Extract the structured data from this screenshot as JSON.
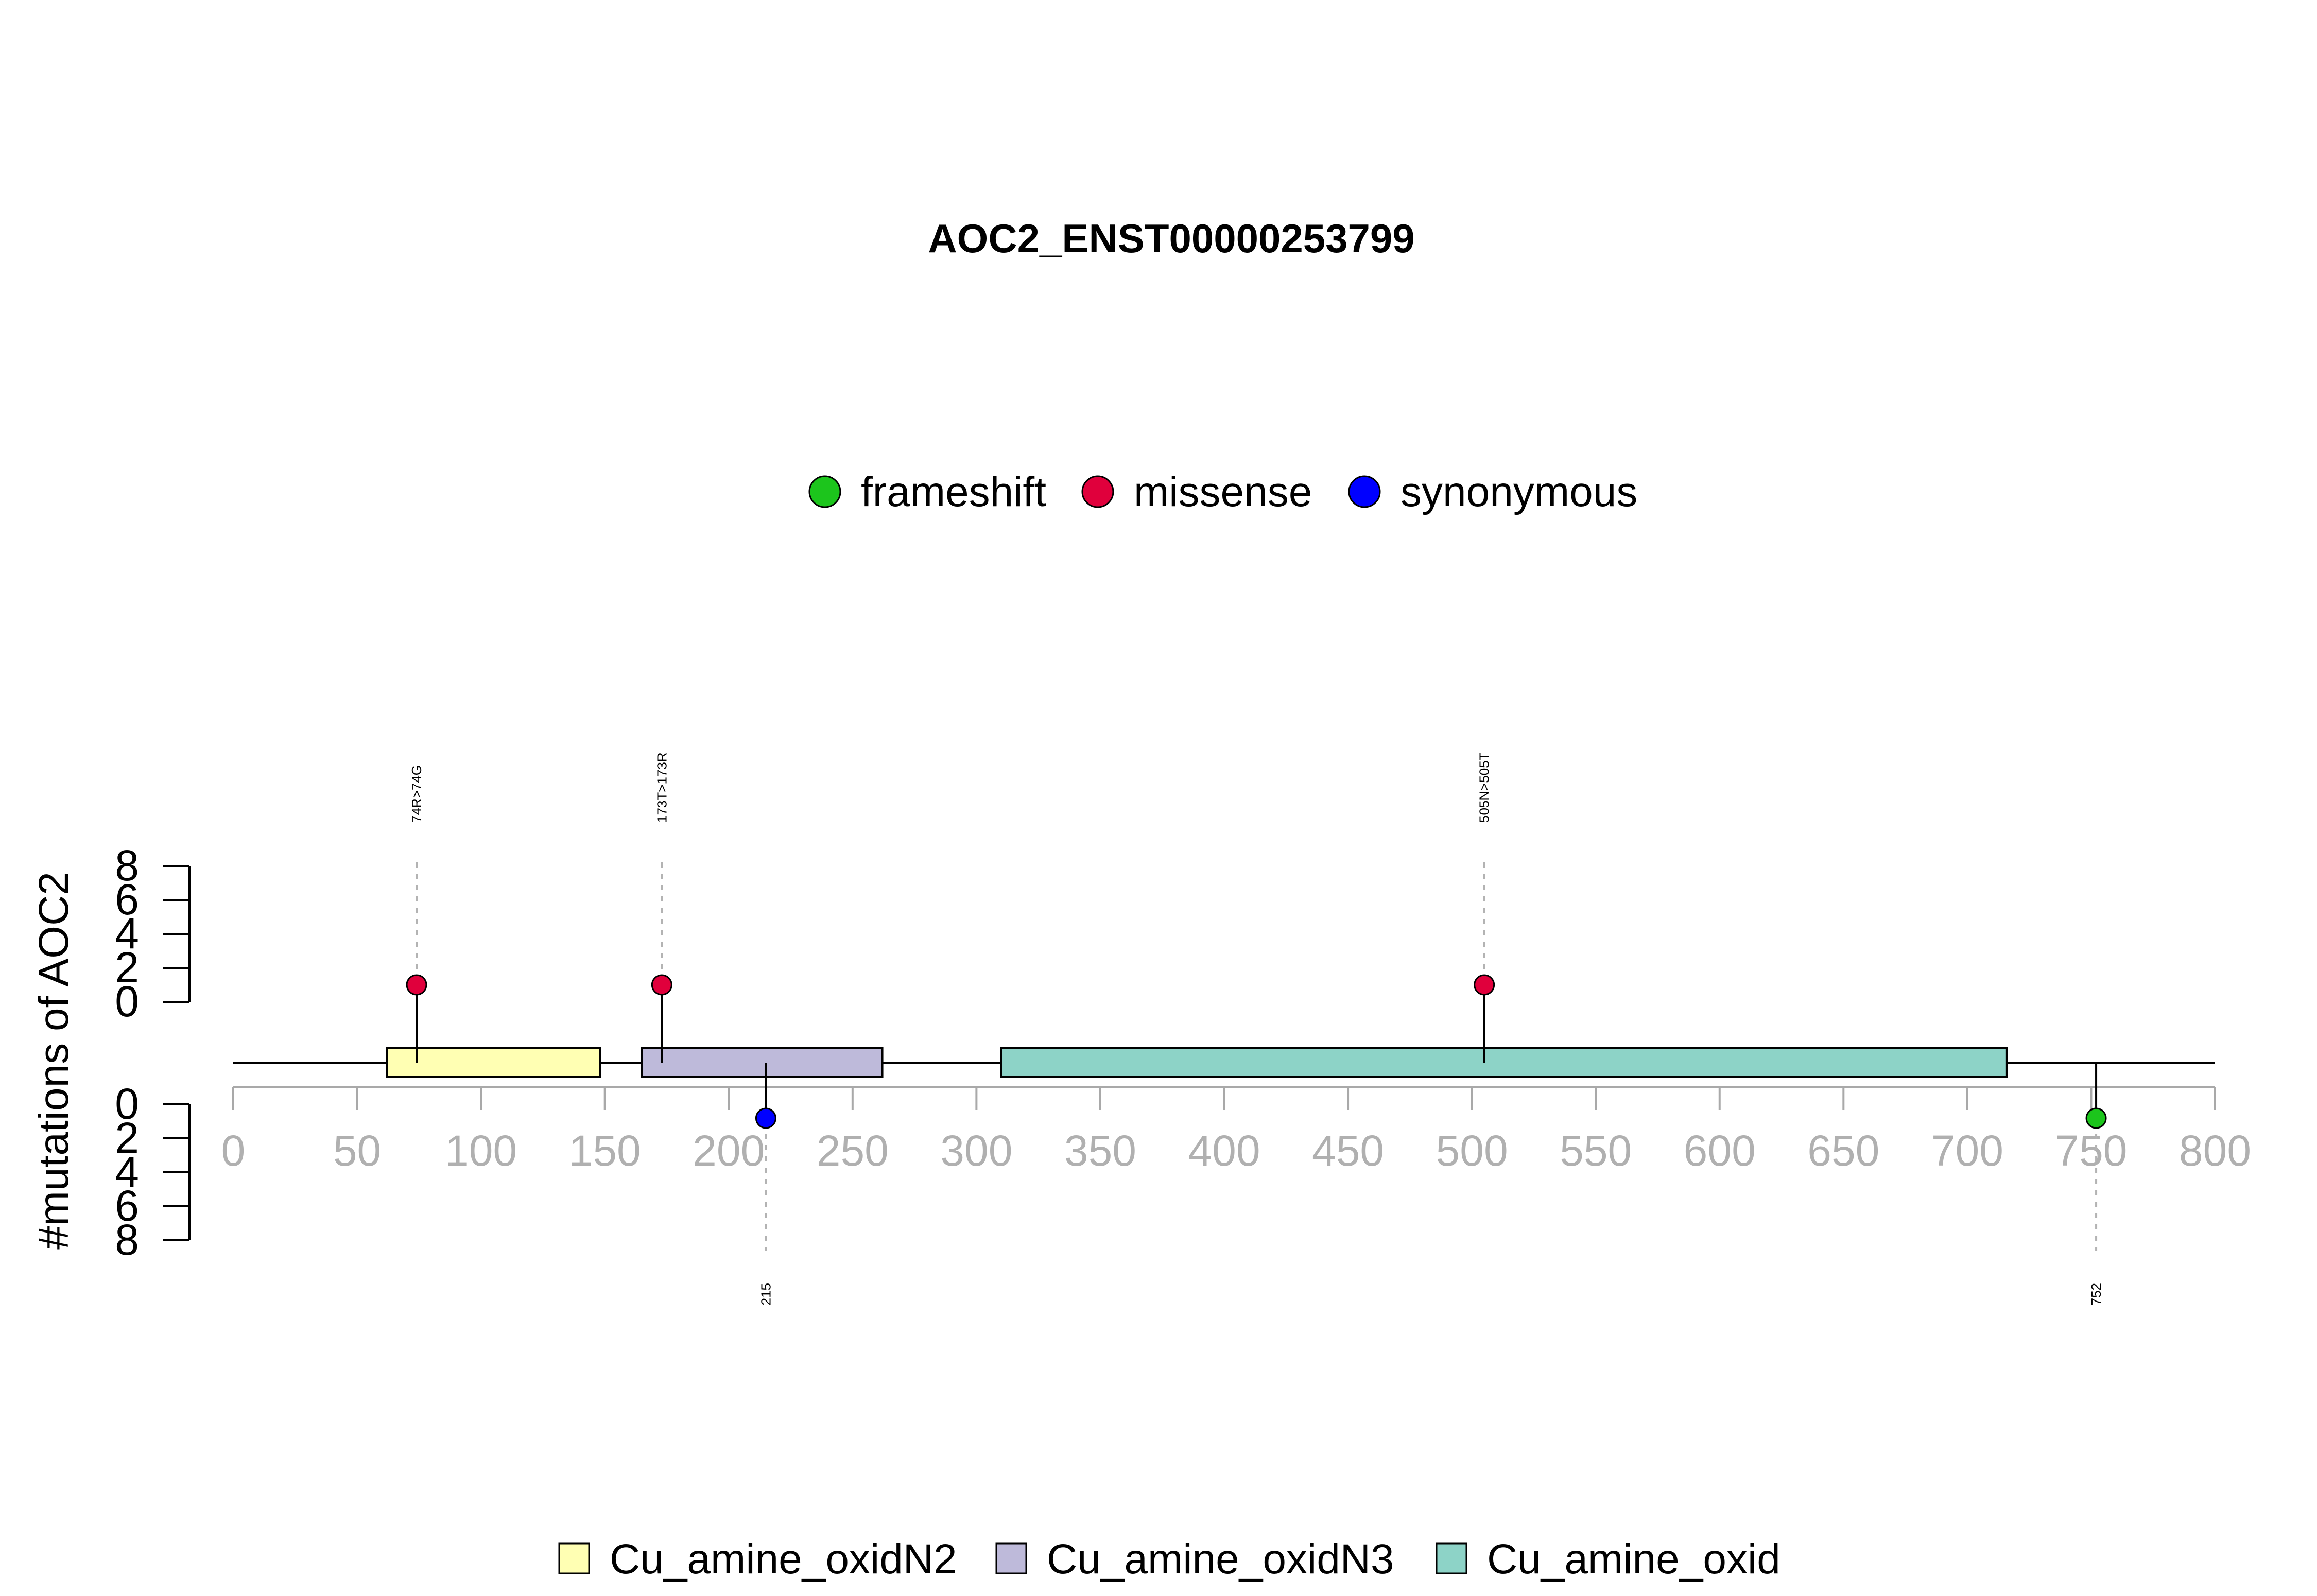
{
  "chart_data": {
    "type": "lollipop",
    "title": "AOC2_ENST00000253799",
    "ylabel": "#mutations of AOC2",
    "xlim": [
      0,
      800
    ],
    "x_ticks": [
      0,
      50,
      100,
      150,
      200,
      250,
      300,
      350,
      400,
      450,
      500,
      550,
      600,
      650,
      700,
      750,
      800
    ],
    "y_ticks": [
      0,
      2,
      4,
      6,
      8
    ],
    "ylim": [
      0,
      8
    ],
    "mutation_legend": [
      {
        "label": "frameshift",
        "color": "#1cc51c"
      },
      {
        "label": "missense",
        "color": "#e0003c"
      },
      {
        "label": "synonymous",
        "color": "#0000ff"
      }
    ],
    "domain_legend": [
      {
        "label": "Cu_amine_oxidN2",
        "color": "#ffffb3"
      },
      {
        "label": "Cu_amine_oxidN3",
        "color": "#bebada"
      },
      {
        "label": "Cu_amine_oxid",
        "color": "#8dd3c7"
      }
    ],
    "domains": [
      {
        "name": "Cu_amine_oxidN2",
        "start": 62,
        "end": 148,
        "color": "#ffffb3"
      },
      {
        "name": "Cu_amine_oxidN3",
        "start": 165,
        "end": 262,
        "color": "#bebada"
      },
      {
        "name": "Cu_amine_oxid",
        "start": 310,
        "end": 716,
        "color": "#8dd3c7"
      }
    ],
    "mutations": [
      {
        "position": 74,
        "label": "74R>74G",
        "type": "missense",
        "count": 1,
        "side": "top",
        "color": "#e0003c"
      },
      {
        "position": 173,
        "label": "173T>173R",
        "type": "missense",
        "count": 1,
        "side": "top",
        "color": "#e0003c"
      },
      {
        "position": 505,
        "label": "505N>505T",
        "type": "missense",
        "count": 1,
        "side": "top",
        "color": "#e0003c"
      },
      {
        "position": 215,
        "label": "215",
        "type": "synonymous",
        "count": 1,
        "side": "bottom",
        "color": "#0000ff"
      },
      {
        "position": 752,
        "label": "752",
        "type": "frameshift",
        "count": 1,
        "side": "bottom",
        "color": "#1cc51c"
      }
    ]
  }
}
